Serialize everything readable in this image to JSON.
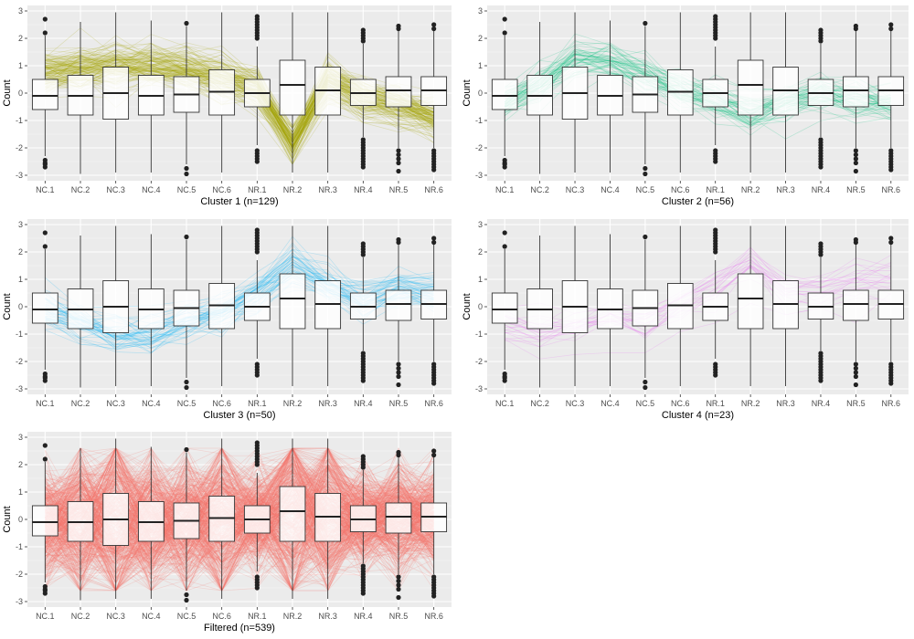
{
  "chart_data": [
    {
      "type": "box",
      "title": "Cluster 1 (n=129)",
      "ylabel": "Count",
      "ylim": [
        -3.2,
        3.2
      ],
      "yticks": [
        -3,
        -2,
        -1,
        0,
        1,
        2,
        3
      ],
      "color": "#a3a500",
      "line_count": 129,
      "categories": [
        "NC.1",
        "NC.2",
        "NC.3",
        "NC.4",
        "NC.5",
        "NC.6",
        "NR.1",
        "NR.2",
        "NR.3",
        "NR.4",
        "NR.5",
        "NR.6"
      ],
      "profile_mean": [
        0.7,
        0.9,
        1.0,
        0.95,
        0.85,
        0.55,
        0.2,
        -1.9,
        0.5,
        -0.2,
        -0.5,
        -0.9
      ]
    },
    {
      "type": "box",
      "title": "Cluster 2 (n=56)",
      "ylabel": "Count",
      "ylim": [
        -3.2,
        3.2
      ],
      "yticks": [
        -3,
        -2,
        -1,
        0,
        1,
        2,
        3
      ],
      "color": "#00bf7d",
      "line_count": 56,
      "categories": [
        "NC.1",
        "NC.2",
        "NC.3",
        "NC.4",
        "NC.5",
        "NC.6",
        "NR.1",
        "NR.2",
        "NR.3",
        "NR.4",
        "NR.5",
        "NR.6"
      ],
      "profile_mean": [
        -0.4,
        0.2,
        1.2,
        1.2,
        0.6,
        0.1,
        -0.3,
        -0.8,
        -0.4,
        0.0,
        -0.2,
        -0.4
      ]
    },
    {
      "type": "box",
      "title": "Cluster 3 (n=50)",
      "ylabel": "Count",
      "ylim": [
        -3.2,
        3.2
      ],
      "yticks": [
        -3,
        -2,
        -1,
        0,
        1,
        2,
        3
      ],
      "color": "#00b0f6",
      "line_count": 50,
      "categories": [
        "NC.1",
        "NC.2",
        "NC.3",
        "NC.4",
        "NC.5",
        "NC.6",
        "NR.1",
        "NR.2",
        "NR.3",
        "NR.4",
        "NR.5",
        "NR.6"
      ],
      "profile_mean": [
        -0.2,
        -0.6,
        -1.0,
        -1.0,
        -0.5,
        -0.2,
        0.5,
        1.5,
        0.8,
        0.2,
        0.7,
        0.5
      ]
    },
    {
      "type": "box",
      "title": "Cluster 4 (n=23)",
      "ylabel": "Count",
      "ylim": [
        -3.2,
        3.2
      ],
      "yticks": [
        -3,
        -2,
        -1,
        0,
        1,
        2,
        3
      ],
      "color": "#e76bf3",
      "line_count": 23,
      "categories": [
        "NC.1",
        "NC.2",
        "NC.3",
        "NC.4",
        "NC.5",
        "NC.6",
        "NR.1",
        "NR.2",
        "NR.3",
        "NR.4",
        "NR.5",
        "NR.6"
      ],
      "profile_mean": [
        -0.8,
        -1.0,
        -0.7,
        -0.5,
        -0.7,
        0.0,
        0.7,
        1.6,
        0.5,
        0.6,
        0.8,
        1.0
      ]
    },
    {
      "type": "box",
      "title": "Filtered (n=539)",
      "ylabel": "Count",
      "ylim": [
        -3.2,
        3.2
      ],
      "yticks": [
        -3,
        -2,
        -1,
        0,
        1,
        2,
        3
      ],
      "color": "#f8766d",
      "line_count": 539,
      "categories": [
        "NC.1",
        "NC.2",
        "NC.3",
        "NC.4",
        "NC.5",
        "NC.6",
        "NR.1",
        "NR.2",
        "NR.3",
        "NR.4",
        "NR.5",
        "NR.6"
      ],
      "profile_mean": [
        0,
        0,
        0,
        0,
        0,
        0,
        0,
        0,
        0,
        0,
        0,
        0
      ]
    }
  ],
  "box_stats": {
    "q1": [
      -0.6,
      -0.8,
      -0.95,
      -0.8,
      -0.7,
      -0.8,
      -0.5,
      -0.8,
      -0.8,
      -0.45,
      -0.5,
      -0.45
    ],
    "median": [
      -0.1,
      -0.1,
      0.0,
      -0.1,
      -0.05,
      0.05,
      0.0,
      0.3,
      0.1,
      0.0,
      0.1,
      0.1
    ],
    "q3": [
      0.5,
      0.65,
      0.95,
      0.65,
      0.6,
      0.85,
      0.5,
      1.2,
      0.95,
      0.5,
      0.6,
      0.6
    ],
    "lower": [
      -2.3,
      -2.95,
      -2.9,
      -2.9,
      -2.6,
      -2.9,
      -1.9,
      -2.9,
      -2.9,
      -1.6,
      -2.0,
      -2.0
    ],
    "upper": [
      2.1,
      2.6,
      2.95,
      2.65,
      2.45,
      2.95,
      1.7,
      2.95,
      2.95,
      1.8,
      2.3,
      2.3
    ],
    "outliers": [
      [
        2.7,
        2.2,
        -2.45,
        -2.55,
        -2.6,
        -2.7
      ],
      [],
      [],
      [],
      [
        2.55,
        -2.75,
        -2.95
      ],
      [],
      [
        2.0,
        2.1,
        2.2,
        2.3,
        2.4,
        2.5,
        2.6,
        2.7,
        2.8,
        -2.1,
        -2.2,
        -2.3,
        -2.4,
        -2.5
      ],
      [],
      [],
      [
        1.9,
        2.0,
        2.1,
        2.2,
        2.3,
        -1.7,
        -1.8,
        -1.9,
        -2.0,
        -2.1,
        -2.2,
        -2.3,
        -2.4,
        -2.5,
        -2.6,
        -2.7
      ],
      [
        2.35,
        2.45,
        -2.1,
        -2.25,
        -2.4,
        -2.55,
        -2.85
      ],
      [
        2.5,
        2.35,
        -2.1,
        -2.2,
        -2.3,
        -2.4,
        -2.5,
        -2.6,
        -2.7,
        -2.8
      ]
    ]
  }
}
